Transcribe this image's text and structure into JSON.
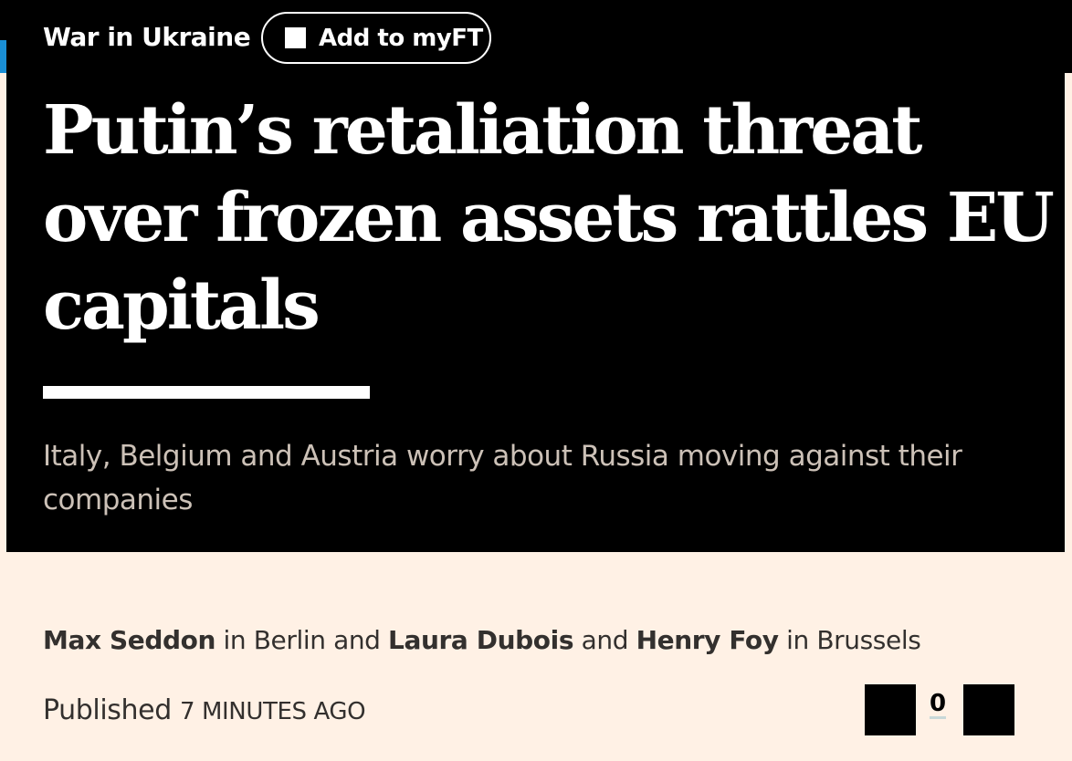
{
  "header": {
    "topic": "War in Ukraine",
    "myft_label": "Add to myFT"
  },
  "article": {
    "headline": "Putin’s retaliation threat over frozen assets rattles EU capitals",
    "standfirst": "Italy, Belgium and Austria worry about Russia moving against their companies",
    "byline": {
      "author1": "Max Seddon",
      "loc1": " in Berlin and ",
      "author2": "Laura Dubois",
      "sep": " and ",
      "author3": "Henry Foy",
      "loc2": " in Brussels"
    },
    "published_label": "Published",
    "published_time": "7 minutes ago",
    "comment_count": "0"
  },
  "colors": {
    "background": "#fff1e5",
    "panel": "#000000",
    "accent_blue": "#1a8fd6"
  }
}
